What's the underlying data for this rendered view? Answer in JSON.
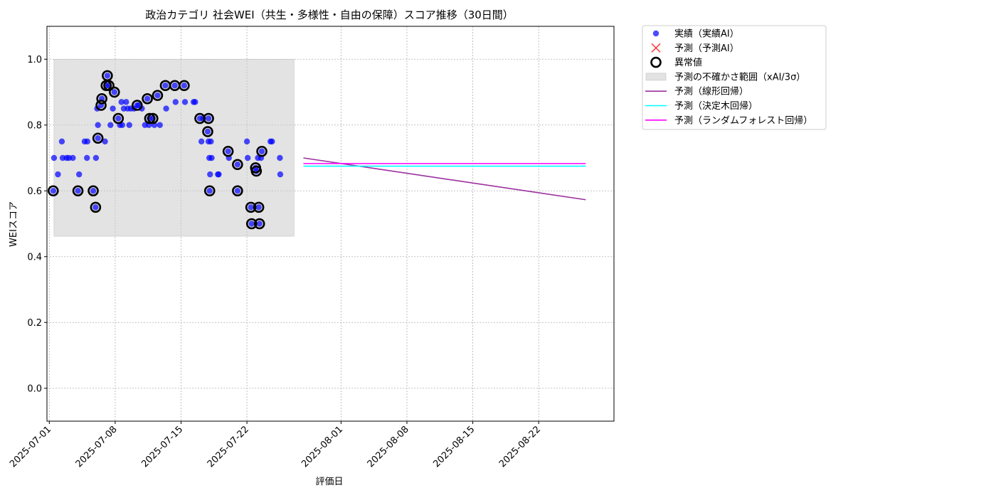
{
  "chart_data": {
    "type": "scatter",
    "title": "政治カテゴリ 社会WEI（共生・多様性・自由の保障）スコア推移（30日間）",
    "xlabel": "評価日",
    "ylabel": "WEIスコア",
    "xlim": [
      "2025-06-30T18:00",
      "2025-08-30"
    ],
    "ylim": [
      -0.1,
      1.1
    ],
    "grid": true,
    "legend_placement": "outside-top-right",
    "x_ticks": [
      "2025-07-01",
      "2025-07-08",
      "2025-07-15",
      "2025-07-22",
      "2025-08-01",
      "2025-08-08",
      "2025-08-15",
      "2025-08-22"
    ],
    "y_ticks": [
      "0.0",
      "0.2",
      "0.4",
      "0.6",
      "0.8",
      "1.0"
    ],
    "uncertainty_band": {
      "label": "予測の不確かさ範囲（xAI/3σ）",
      "x_start": "2025-07-01T12:00",
      "x_end": "2025-07-27",
      "y_low": 0.462,
      "y_high": 1.0,
      "color": "#cccccc"
    },
    "series": [
      {
        "name": "実績（実績AI）",
        "kind": "points",
        "color": "#0000ff",
        "points": [
          [
            "2025-07-01T10:00",
            0.6
          ],
          [
            "2025-07-01T12:00",
            0.7
          ],
          [
            "2025-07-01T22:00",
            0.65
          ],
          [
            "2025-07-02T08:00",
            0.75
          ],
          [
            "2025-07-02T10:00",
            0.7
          ],
          [
            "2025-07-02T20:00",
            0.7
          ],
          [
            "2025-07-03T02:00",
            0.7
          ],
          [
            "2025-07-03T12:00",
            0.7
          ],
          [
            "2025-07-04T01:00",
            0.6
          ],
          [
            "2025-07-04T04:00",
            0.65
          ],
          [
            "2025-07-04T18:00",
            0.75
          ],
          [
            "2025-07-05T00:00",
            0.7
          ],
          [
            "2025-07-05T01:00",
            0.75
          ],
          [
            "2025-07-05T16:00",
            0.6
          ],
          [
            "2025-07-05T22:00",
            0.55
          ],
          [
            "2025-07-05T23:00",
            0.7
          ],
          [
            "2025-07-06T02:00",
            0.85
          ],
          [
            "2025-07-06T04:00",
            0.76
          ],
          [
            "2025-07-06T04:00",
            0.8
          ],
          [
            "2025-07-06T12:00",
            0.86
          ],
          [
            "2025-07-06T14:00",
            0.88
          ],
          [
            "2025-07-06T22:00",
            0.75
          ],
          [
            "2025-07-07T01:00",
            0.92
          ],
          [
            "2025-07-07T04:00",
            0.95
          ],
          [
            "2025-07-07T08:00",
            0.92
          ],
          [
            "2025-07-07T12:00",
            0.8
          ],
          [
            "2025-07-07T18:00",
            0.85
          ],
          [
            "2025-07-07T22:00",
            0.9
          ],
          [
            "2025-07-08T08:00",
            0.82
          ],
          [
            "2025-07-08T12:00",
            0.8
          ],
          [
            "2025-07-08T16:00",
            0.87
          ],
          [
            "2025-07-08T18:00",
            0.8
          ],
          [
            "2025-07-08T22:00",
            0.85
          ],
          [
            "2025-07-09T04:00",
            0.87
          ],
          [
            "2025-07-09T08:00",
            0.85
          ],
          [
            "2025-07-09T12:00",
            0.8
          ],
          [
            "2025-07-09T16:00",
            0.85
          ],
          [
            "2025-07-10T00:00",
            0.85
          ],
          [
            "2025-07-10T08:00",
            0.86
          ],
          [
            "2025-07-10T12:00",
            0.86
          ],
          [
            "2025-07-10T20:00",
            0.85
          ],
          [
            "2025-07-11T04:00",
            0.8
          ],
          [
            "2025-07-11T10:00",
            0.88
          ],
          [
            "2025-07-11T14:00",
            0.8
          ],
          [
            "2025-07-11T16:00",
            0.82
          ],
          [
            "2025-07-12T00:00",
            0.82
          ],
          [
            "2025-07-12T04:00",
            0.8
          ],
          [
            "2025-07-12T12:00",
            0.89
          ],
          [
            "2025-07-12T18:00",
            0.8
          ],
          [
            "2025-07-13T08:00",
            0.92
          ],
          [
            "2025-07-13T10:00",
            0.85
          ],
          [
            "2025-07-14T08:00",
            0.92
          ],
          [
            "2025-07-14T10:00",
            0.87
          ],
          [
            "2025-07-15T08:00",
            0.92
          ],
          [
            "2025-07-15T10:00",
            0.87
          ],
          [
            "2025-07-16T08:00",
            0.87
          ],
          [
            "2025-07-16T12:00",
            0.87
          ],
          [
            "2025-07-17T00:00",
            0.82
          ],
          [
            "2025-07-17T04:00",
            0.75
          ],
          [
            "2025-07-17T08:00",
            0.82
          ],
          [
            "2025-07-17T20:00",
            0.78
          ],
          [
            "2025-07-17T22:00",
            0.82
          ],
          [
            "2025-07-17T22:00",
            0.75
          ],
          [
            "2025-07-18T00:00",
            0.7
          ],
          [
            "2025-07-18T01:00",
            0.6
          ],
          [
            "2025-07-18T02:00",
            0.65
          ],
          [
            "2025-07-18T04:00",
            0.75
          ],
          [
            "2025-07-18T06:00",
            0.7
          ],
          [
            "2025-07-18T22:00",
            0.65
          ],
          [
            "2025-07-19T00:00",
            0.65
          ],
          [
            "2025-07-20T00:00",
            0.72
          ],
          [
            "2025-07-20T02:00",
            0.7
          ],
          [
            "2025-07-21T00:00",
            0.68
          ],
          [
            "2025-07-21T00:00",
            0.6
          ],
          [
            "2025-07-22T00:00",
            0.75
          ],
          [
            "2025-07-22T02:00",
            0.7
          ],
          [
            "2025-07-22T10:00",
            0.55
          ],
          [
            "2025-07-22T12:00",
            0.5
          ],
          [
            "2025-07-22T22:00",
            0.67
          ],
          [
            "2025-07-23T00:00",
            0.66
          ],
          [
            "2025-07-23T04:00",
            0.7
          ],
          [
            "2025-07-23T06:00",
            0.55
          ],
          [
            "2025-07-23T08:00",
            0.5
          ],
          [
            "2025-07-23T12:00",
            0.7
          ],
          [
            "2025-07-23T14:00",
            0.72
          ],
          [
            "2025-07-24T12:00",
            0.75
          ],
          [
            "2025-07-24T16:00",
            0.75
          ],
          [
            "2025-07-25T12:00",
            0.7
          ],
          [
            "2025-07-25T13:00",
            0.65
          ]
        ]
      },
      {
        "name": "予測（予測AI）",
        "kind": "points",
        "color": "#ff0000",
        "points": []
      },
      {
        "name": "異常値",
        "kind": "anomaly",
        "color": "#000000",
        "points": [
          [
            "2025-07-01T10:00",
            0.6
          ],
          [
            "2025-07-04T01:00",
            0.6
          ],
          [
            "2025-07-05T16:00",
            0.6
          ],
          [
            "2025-07-05T22:00",
            0.55
          ],
          [
            "2025-07-06T04:00",
            0.76
          ],
          [
            "2025-07-06T12:00",
            0.86
          ],
          [
            "2025-07-06T14:00",
            0.88
          ],
          [
            "2025-07-07T01:00",
            0.92
          ],
          [
            "2025-07-07T04:00",
            0.95
          ],
          [
            "2025-07-07T08:00",
            0.92
          ],
          [
            "2025-07-07T22:00",
            0.9
          ],
          [
            "2025-07-08T08:00",
            0.82
          ],
          [
            "2025-07-10T08:00",
            0.86
          ],
          [
            "2025-07-11T10:00",
            0.88
          ],
          [
            "2025-07-11T16:00",
            0.82
          ],
          [
            "2025-07-12T00:00",
            0.82
          ],
          [
            "2025-07-12T12:00",
            0.89
          ],
          [
            "2025-07-13T08:00",
            0.92
          ],
          [
            "2025-07-14T08:00",
            0.92
          ],
          [
            "2025-07-15T08:00",
            0.92
          ],
          [
            "2025-07-17T00:00",
            0.82
          ],
          [
            "2025-07-17T20:00",
            0.78
          ],
          [
            "2025-07-17T22:00",
            0.82
          ],
          [
            "2025-07-18T01:00",
            0.6
          ],
          [
            "2025-07-20T00:00",
            0.72
          ],
          [
            "2025-07-21T00:00",
            0.68
          ],
          [
            "2025-07-21T00:00",
            0.6
          ],
          [
            "2025-07-22T10:00",
            0.55
          ],
          [
            "2025-07-22T12:00",
            0.5
          ],
          [
            "2025-07-22T22:00",
            0.67
          ],
          [
            "2025-07-23T00:00",
            0.66
          ],
          [
            "2025-07-23T06:00",
            0.55
          ],
          [
            "2025-07-23T08:00",
            0.5
          ],
          [
            "2025-07-23T14:00",
            0.72
          ]
        ]
      },
      {
        "name": "予測（線形回帰）",
        "kind": "line",
        "color": "#9b30a0",
        "points": [
          [
            "2025-07-28",
            0.7
          ],
          [
            "2025-08-27",
            0.573
          ]
        ]
      },
      {
        "name": "予測（決定木回帰）",
        "kind": "line",
        "color": "#00ffff",
        "points": [
          [
            "2025-07-28",
            0.675
          ],
          [
            "2025-08-27",
            0.675
          ]
        ]
      },
      {
        "name": "予測（ランダムフォレスト回帰）",
        "kind": "line",
        "color": "#ff00ff",
        "points": [
          [
            "2025-07-28",
            0.683
          ],
          [
            "2025-08-27",
            0.683
          ]
        ]
      }
    ]
  }
}
